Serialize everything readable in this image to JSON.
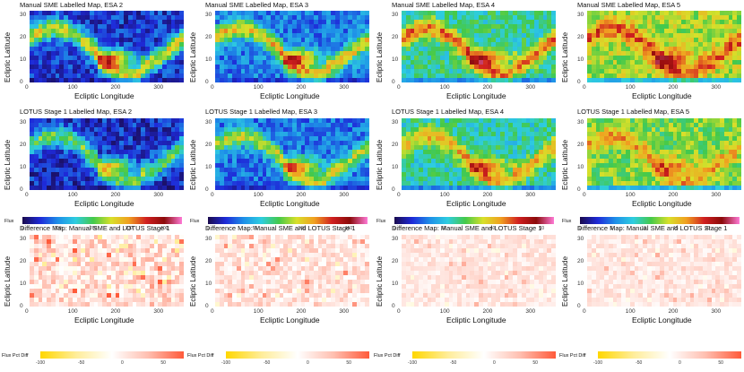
{
  "chart_data": [
    {
      "type": "heatmap",
      "title": "Manual SME Labelled Map, ESA  2",
      "xlabel": "Ecliptic Longitude",
      "ylabel": "Ecliptic Latitude",
      "xticks": [
        0,
        100,
        200,
        300
      ],
      "yticks": [
        0,
        10,
        20,
        30
      ],
      "xlim": [
        0,
        360
      ],
      "ylim": [
        0,
        32
      ],
      "colorscale": "flux",
      "scale_max": 450,
      "base": 55,
      "peak": 420,
      "band": true
    },
    {
      "type": "heatmap",
      "title": "Manual SME Labelled Map, ESA  3",
      "xlabel": "Ecliptic Longitude",
      "ylabel": "Ecliptic Latitude",
      "xticks": [
        0,
        100,
        200,
        300
      ],
      "yticks": [
        0,
        10,
        20,
        30
      ],
      "xlim": [
        0,
        360
      ],
      "ylim": [
        0,
        32
      ],
      "colorscale": "flux",
      "scale_max": 170,
      "base": 35,
      "peak": 160,
      "band": true
    },
    {
      "type": "heatmap",
      "title": "Manual SME Labelled Map, ESA  4",
      "xlabel": "Ecliptic Longitude",
      "ylabel": "Ecliptic Latitude",
      "xticks": [
        0,
        100,
        200,
        300
      ],
      "yticks": [
        0,
        10,
        20,
        30
      ],
      "xlim": [
        0,
        360
      ],
      "ylim": [
        0,
        32
      ],
      "colorscale": "flux",
      "scale_max": 65,
      "base": 25,
      "peak": 62,
      "band": true
    },
    {
      "type": "heatmap",
      "title": "Manual SME Labelled Map, ESA  5",
      "xlabel": "Ecliptic Longitude",
      "ylabel": "Ecliptic Latitude",
      "xticks": [
        0,
        100,
        200,
        300
      ],
      "yticks": [
        0,
        10,
        20,
        30
      ],
      "xlim": [
        0,
        360
      ],
      "ylim": [
        0,
        32
      ],
      "colorscale": "flux",
      "scale_max": 25,
      "base": 13,
      "peak": 23,
      "band": true
    },
    {
      "type": "heatmap",
      "title": "LOTUS Stage 1 Labelled Map, ESA  2",
      "xlabel": "Ecliptic Longitude",
      "ylabel": "Ecliptic Latitude",
      "xticks": [
        0,
        100,
        200,
        300
      ],
      "yticks": [
        0,
        10,
        20,
        30
      ],
      "xlim": [
        0,
        360
      ],
      "ylim": [
        0,
        32
      ],
      "colorscale": "flux",
      "scale_max": 450,
      "base": 50,
      "peak": 330,
      "band": true
    },
    {
      "type": "heatmap",
      "title": "LOTUS Stage 1 Labelled Map, ESA  3",
      "xlabel": "Ecliptic Longitude",
      "ylabel": "Ecliptic Latitude",
      "xticks": [
        0,
        100,
        200,
        300
      ],
      "yticks": [
        0,
        10,
        20,
        30
      ],
      "xlim": [
        0,
        360
      ],
      "ylim": [
        0,
        32
      ],
      "colorscale": "flux",
      "scale_max": 170,
      "base": 33,
      "peak": 140,
      "band": true
    },
    {
      "type": "heatmap",
      "title": "LOTUS Stage 1 Labelled Map, ESA  4",
      "xlabel": "Ecliptic Longitude",
      "ylabel": "Ecliptic Latitude",
      "xticks": [
        0,
        100,
        200,
        300
      ],
      "yticks": [
        0,
        10,
        20,
        30
      ],
      "xlim": [
        0,
        360
      ],
      "ylim": [
        0,
        32
      ],
      "colorscale": "flux",
      "scale_max": 65,
      "base": 24,
      "peak": 55,
      "band": true
    },
    {
      "type": "heatmap",
      "title": "LOTUS Stage 1 Labelled Map, ESA  5",
      "xlabel": "Ecliptic Longitude",
      "ylabel": "Ecliptic Latitude",
      "xticks": [
        0,
        100,
        200,
        300
      ],
      "yticks": [
        0,
        10,
        20,
        30
      ],
      "xlim": [
        0,
        360
      ],
      "ylim": [
        0,
        32
      ],
      "colorscale": "flux",
      "scale_max": 25,
      "base": 12,
      "peak": 20,
      "band": true
    },
    {
      "type": "heatmap",
      "title": "Difference Map: Manual SME and LOTUS Stage 1",
      "xlabel": "Ecliptic Longitude",
      "ylabel": "Ecliptic Latitude",
      "xticks": [
        0,
        100,
        200,
        300
      ],
      "yticks": [
        0,
        10,
        20,
        30
      ],
      "xlim": [
        0,
        360
      ],
      "ylim": [
        0,
        32
      ],
      "colorscale": "diff",
      "diff_amp": 30
    },
    {
      "type": "heatmap",
      "title": "Difference Map: Manual SME and LOTUS Stage 1",
      "xlabel": "Ecliptic Longitude",
      "ylabel": "Ecliptic Latitude",
      "xticks": [
        0,
        100,
        200,
        300
      ],
      "yticks": [
        0,
        10,
        20,
        30
      ],
      "xlim": [
        0,
        360
      ],
      "ylim": [
        0,
        32
      ],
      "colorscale": "diff",
      "diff_amp": 22
    },
    {
      "type": "heatmap",
      "title": "Difference Map: Manual SME and LOTUS Stage 1",
      "xlabel": "Ecliptic Longitude",
      "ylabel": "Ecliptic Latitude",
      "xticks": [
        0,
        100,
        200,
        300
      ],
      "yticks": [
        0,
        10,
        20,
        30
      ],
      "xlim": [
        0,
        360
      ],
      "ylim": [
        0,
        32
      ],
      "colorscale": "diff",
      "diff_amp": 14
    },
    {
      "type": "heatmap",
      "title": "Difference Map: Manual SME and LOTUS Stage 1",
      "xlabel": "Ecliptic Longitude",
      "ylabel": "Ecliptic Latitude",
      "xticks": [
        0,
        100,
        200,
        300
      ],
      "yticks": [
        0,
        10,
        20,
        30
      ],
      "xlim": [
        0,
        360
      ],
      "ylim": [
        0,
        32
      ],
      "colorscale": "diff",
      "diff_amp": 14
    }
  ],
  "legends": [
    {
      "title": "Flux",
      "scale": "flux",
      "min": 0,
      "max": 450,
      "ticks": [
        0,
        100,
        200,
        300,
        400
      ]
    },
    {
      "title": "Flux",
      "scale": "flux",
      "min": 0,
      "max": 170,
      "ticks": [
        0,
        50,
        100,
        150
      ]
    },
    {
      "title": "Flux",
      "scale": "flux",
      "min": 0,
      "max": 65,
      "ticks": [
        0,
        20,
        40,
        60
      ]
    },
    {
      "title": "Flux",
      "scale": "flux",
      "min": 0,
      "max": 25,
      "ticks": [
        0,
        5,
        10,
        15,
        20
      ]
    },
    {
      "title": "Flux Pct Diff",
      "scale": "diff",
      "min": -100,
      "max": 75,
      "ticks": [
        -100,
        -50,
        0,
        50
      ]
    },
    {
      "title": "Flux Pct Diff",
      "scale": "diff",
      "min": -100,
      "max": 75,
      "ticks": [
        -100,
        -50,
        0,
        50
      ]
    },
    {
      "title": "Flux Pct Diff",
      "scale": "diff",
      "min": -100,
      "max": 75,
      "ticks": [
        -100,
        -50,
        0,
        50
      ]
    },
    {
      "title": "Flux Pct Diff",
      "scale": "diff",
      "min": -100,
      "max": 75,
      "ticks": [
        -100,
        -50,
        0,
        50
      ]
    }
  ],
  "colors": {
    "flux_scale": [
      "#1a0a4d",
      "#1e2ad8",
      "#1e8fe8",
      "#2ecde0",
      "#44c94a",
      "#d8e02a",
      "#f0a020",
      "#d02020",
      "#8b0a0a",
      "#ff7ad6"
    ],
    "diff_scale": [
      "#ffd700",
      "#ffed9a",
      "#ffffff",
      "#ffbfb0",
      "#ff5a3a"
    ]
  }
}
